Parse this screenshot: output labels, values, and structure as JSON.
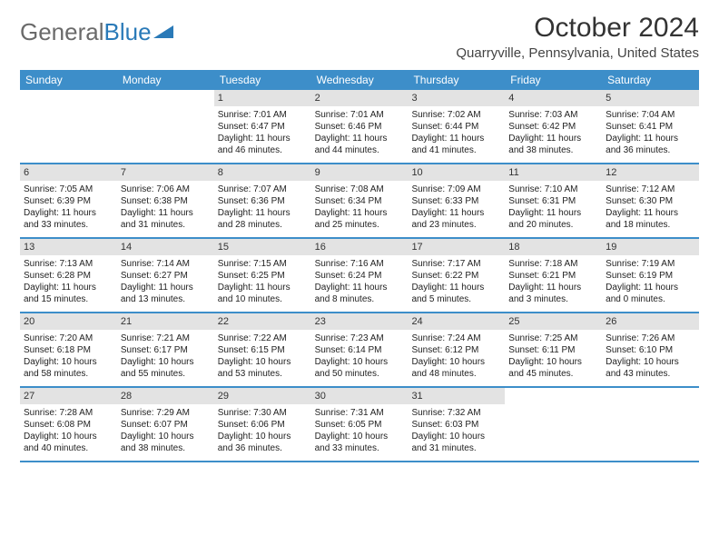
{
  "brand": {
    "part1": "General",
    "part2": "Blue"
  },
  "title": "October 2024",
  "location": "Quarryville, Pennsylvania, United States",
  "colors": {
    "header_bg": "#3d8ec9",
    "header_text": "#ffffff",
    "date_bg": "#e3e3e3",
    "logo_gray": "#6a6a6a",
    "logo_blue": "#2a7ab8"
  },
  "day_headers": [
    "Sunday",
    "Monday",
    "Tuesday",
    "Wednesday",
    "Thursday",
    "Friday",
    "Saturday"
  ],
  "weeks": [
    [
      null,
      null,
      {
        "d": "1",
        "sr": "7:01 AM",
        "ss": "6:47 PM",
        "dl": "Daylight: 11 hours and 46 minutes."
      },
      {
        "d": "2",
        "sr": "7:01 AM",
        "ss": "6:46 PM",
        "dl": "Daylight: 11 hours and 44 minutes."
      },
      {
        "d": "3",
        "sr": "7:02 AM",
        "ss": "6:44 PM",
        "dl": "Daylight: 11 hours and 41 minutes."
      },
      {
        "d": "4",
        "sr": "7:03 AM",
        "ss": "6:42 PM",
        "dl": "Daylight: 11 hours and 38 minutes."
      },
      {
        "d": "5",
        "sr": "7:04 AM",
        "ss": "6:41 PM",
        "dl": "Daylight: 11 hours and 36 minutes."
      }
    ],
    [
      {
        "d": "6",
        "sr": "7:05 AM",
        "ss": "6:39 PM",
        "dl": "Daylight: 11 hours and 33 minutes."
      },
      {
        "d": "7",
        "sr": "7:06 AM",
        "ss": "6:38 PM",
        "dl": "Daylight: 11 hours and 31 minutes."
      },
      {
        "d": "8",
        "sr": "7:07 AM",
        "ss": "6:36 PM",
        "dl": "Daylight: 11 hours and 28 minutes."
      },
      {
        "d": "9",
        "sr": "7:08 AM",
        "ss": "6:34 PM",
        "dl": "Daylight: 11 hours and 25 minutes."
      },
      {
        "d": "10",
        "sr": "7:09 AM",
        "ss": "6:33 PM",
        "dl": "Daylight: 11 hours and 23 minutes."
      },
      {
        "d": "11",
        "sr": "7:10 AM",
        "ss": "6:31 PM",
        "dl": "Daylight: 11 hours and 20 minutes."
      },
      {
        "d": "12",
        "sr": "7:12 AM",
        "ss": "6:30 PM",
        "dl": "Daylight: 11 hours and 18 minutes."
      }
    ],
    [
      {
        "d": "13",
        "sr": "7:13 AM",
        "ss": "6:28 PM",
        "dl": "Daylight: 11 hours and 15 minutes."
      },
      {
        "d": "14",
        "sr": "7:14 AM",
        "ss": "6:27 PM",
        "dl": "Daylight: 11 hours and 13 minutes."
      },
      {
        "d": "15",
        "sr": "7:15 AM",
        "ss": "6:25 PM",
        "dl": "Daylight: 11 hours and 10 minutes."
      },
      {
        "d": "16",
        "sr": "7:16 AM",
        "ss": "6:24 PM",
        "dl": "Daylight: 11 hours and 8 minutes."
      },
      {
        "d": "17",
        "sr": "7:17 AM",
        "ss": "6:22 PM",
        "dl": "Daylight: 11 hours and 5 minutes."
      },
      {
        "d": "18",
        "sr": "7:18 AM",
        "ss": "6:21 PM",
        "dl": "Daylight: 11 hours and 3 minutes."
      },
      {
        "d": "19",
        "sr": "7:19 AM",
        "ss": "6:19 PM",
        "dl": "Daylight: 11 hours and 0 minutes."
      }
    ],
    [
      {
        "d": "20",
        "sr": "7:20 AM",
        "ss": "6:18 PM",
        "dl": "Daylight: 10 hours and 58 minutes."
      },
      {
        "d": "21",
        "sr": "7:21 AM",
        "ss": "6:17 PM",
        "dl": "Daylight: 10 hours and 55 minutes."
      },
      {
        "d": "22",
        "sr": "7:22 AM",
        "ss": "6:15 PM",
        "dl": "Daylight: 10 hours and 53 minutes."
      },
      {
        "d": "23",
        "sr": "7:23 AM",
        "ss": "6:14 PM",
        "dl": "Daylight: 10 hours and 50 minutes."
      },
      {
        "d": "24",
        "sr": "7:24 AM",
        "ss": "6:12 PM",
        "dl": "Daylight: 10 hours and 48 minutes."
      },
      {
        "d": "25",
        "sr": "7:25 AM",
        "ss": "6:11 PM",
        "dl": "Daylight: 10 hours and 45 minutes."
      },
      {
        "d": "26",
        "sr": "7:26 AM",
        "ss": "6:10 PM",
        "dl": "Daylight: 10 hours and 43 minutes."
      }
    ],
    [
      {
        "d": "27",
        "sr": "7:28 AM",
        "ss": "6:08 PM",
        "dl": "Daylight: 10 hours and 40 minutes."
      },
      {
        "d": "28",
        "sr": "7:29 AM",
        "ss": "6:07 PM",
        "dl": "Daylight: 10 hours and 38 minutes."
      },
      {
        "d": "29",
        "sr": "7:30 AM",
        "ss": "6:06 PM",
        "dl": "Daylight: 10 hours and 36 minutes."
      },
      {
        "d": "30",
        "sr": "7:31 AM",
        "ss": "6:05 PM",
        "dl": "Daylight: 10 hours and 33 minutes."
      },
      {
        "d": "31",
        "sr": "7:32 AM",
        "ss": "6:03 PM",
        "dl": "Daylight: 10 hours and 31 minutes."
      },
      null,
      null
    ]
  ]
}
